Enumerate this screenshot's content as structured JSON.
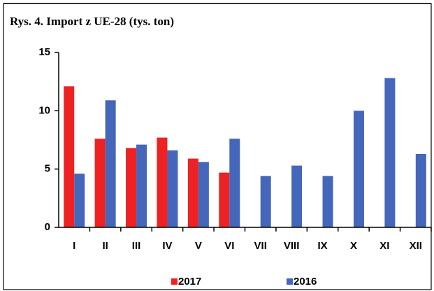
{
  "chart_data": {
    "type": "bar",
    "title": "Rys. 4. Import z UE-28 (tys. ton)",
    "categories": [
      "I",
      "II",
      "III",
      "IV",
      "V",
      "VI",
      "VII",
      "VIII",
      "IX",
      "X",
      "XI",
      "XII"
    ],
    "series": [
      {
        "name": "2017",
        "color": "#ee2222",
        "values": [
          12.1,
          7.6,
          6.8,
          7.7,
          5.9,
          4.7,
          null,
          null,
          null,
          null,
          null,
          null
        ]
      },
      {
        "name": "2016",
        "color": "#4466bb",
        "values": [
          4.6,
          10.9,
          7.1,
          6.6,
          5.6,
          7.6,
          4.4,
          5.3,
          4.4,
          10.0,
          12.8,
          6.3
        ]
      }
    ],
    "ylim": [
      0,
      15
    ],
    "yticks": [
      0,
      5,
      10,
      15
    ],
    "legend": "bottom"
  }
}
